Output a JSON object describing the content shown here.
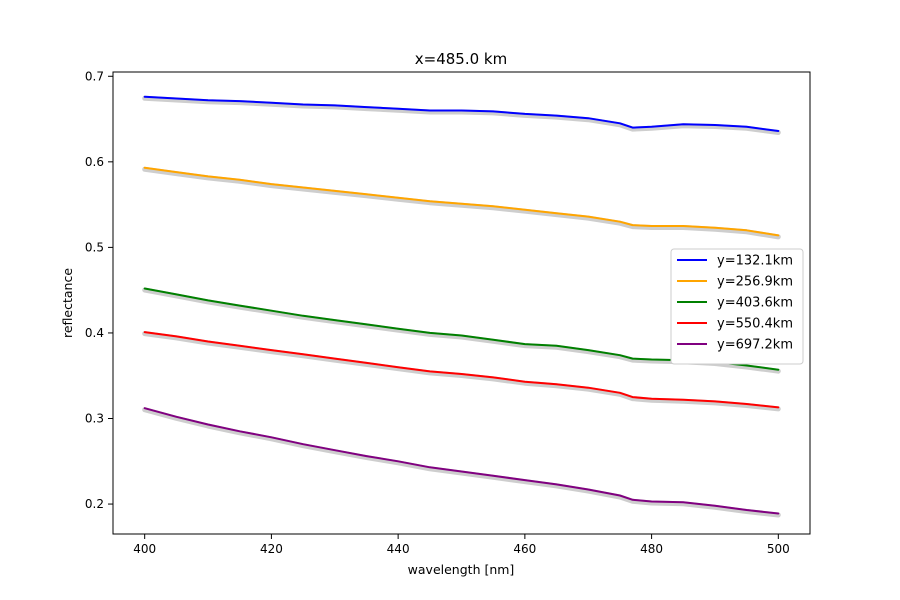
{
  "chart_data": {
    "type": "line",
    "title": "x=485.0 km",
    "xlabel": "wavelength [nm]",
    "ylabel": "reflectance",
    "xlim": [
      395,
      505
    ],
    "ylim": [
      0.165,
      0.705
    ],
    "xticks": [
      400,
      420,
      440,
      460,
      480,
      500
    ],
    "xtick_labels": [
      "400",
      "420",
      "440",
      "460",
      "480",
      "500"
    ],
    "yticks": [
      0.2,
      0.3,
      0.4,
      0.5,
      0.6,
      0.7
    ],
    "ytick_labels": [
      "0.2",
      "0.3",
      "0.4",
      "0.5",
      "0.6",
      "0.7"
    ],
    "grid": false,
    "legend_position": "center-right",
    "x": [
      400,
      405,
      410,
      415,
      420,
      425,
      430,
      435,
      440,
      445,
      450,
      455,
      460,
      465,
      470,
      475,
      477,
      480,
      485,
      490,
      495,
      500
    ],
    "series": [
      {
        "name": "y=132.1km",
        "color": "#0000ff",
        "values": [
          0.676,
          0.674,
          0.672,
          0.671,
          0.669,
          0.667,
          0.666,
          0.664,
          0.662,
          0.66,
          0.66,
          0.659,
          0.656,
          0.654,
          0.651,
          0.645,
          0.64,
          0.641,
          0.644,
          0.643,
          0.641,
          0.636
        ]
      },
      {
        "name": "y=256.9km",
        "color": "#ffa500",
        "values": [
          0.593,
          0.588,
          0.583,
          0.579,
          0.574,
          0.57,
          0.566,
          0.562,
          0.558,
          0.554,
          0.551,
          0.548,
          0.544,
          0.54,
          0.536,
          0.53,
          0.526,
          0.525,
          0.525,
          0.523,
          0.52,
          0.514
        ]
      },
      {
        "name": "y=403.6km",
        "color": "#008000",
        "values": [
          0.452,
          0.445,
          0.438,
          0.432,
          0.426,
          0.42,
          0.415,
          0.41,
          0.405,
          0.4,
          0.397,
          0.392,
          0.387,
          0.385,
          0.38,
          0.374,
          0.37,
          0.369,
          0.368,
          0.366,
          0.362,
          0.357
        ]
      },
      {
        "name": "y=550.4km",
        "color": "#ff0000",
        "values": [
          0.401,
          0.396,
          0.39,
          0.385,
          0.38,
          0.375,
          0.37,
          0.365,
          0.36,
          0.355,
          0.352,
          0.348,
          0.343,
          0.34,
          0.336,
          0.33,
          0.325,
          0.323,
          0.322,
          0.32,
          0.317,
          0.313
        ]
      },
      {
        "name": "y=697.2km",
        "color": "#800080",
        "values": [
          0.312,
          0.302,
          0.293,
          0.285,
          0.278,
          0.27,
          0.263,
          0.256,
          0.25,
          0.243,
          0.238,
          0.233,
          0.228,
          0.223,
          0.217,
          0.21,
          0.205,
          0.203,
          0.202,
          0.198,
          0.193,
          0.189
        ]
      }
    ]
  }
}
